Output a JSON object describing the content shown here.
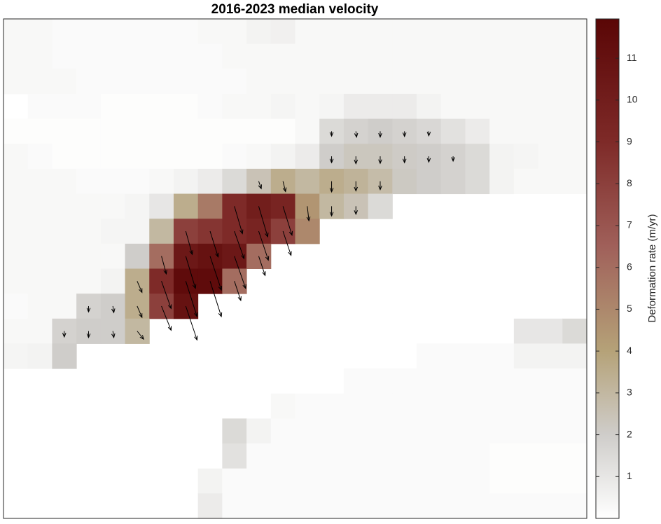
{
  "chart_data": {
    "type": "heatmap",
    "title": "2016-2023 median velocity",
    "colorbar_label": "Deformation rate (m/yr)",
    "clim": [
      0,
      11.94
    ],
    "colorbar_ticks": [
      1,
      2,
      3,
      4,
      5,
      6,
      7,
      8,
      9,
      10,
      11
    ],
    "colormap": [
      [
        0,
        "#ffffff"
      ],
      [
        2,
        "#cfcdca"
      ],
      [
        4,
        "#b5a278"
      ],
      [
        6.5,
        "#a0605a"
      ],
      [
        9,
        "#7e2a28"
      ],
      [
        11.94,
        "#5a0606"
      ]
    ],
    "z": [
      [
        0.3,
        0.3,
        0.2,
        0.2,
        0.2,
        0.2,
        0.2,
        0.2,
        0.3,
        0.3,
        0.5,
        0.6,
        0.3,
        0.3,
        0.3,
        0.3,
        0.3,
        0.3,
        0.3,
        0.3,
        0.3,
        0.3,
        0.3,
        0.3
      ],
      [
        0.3,
        0.3,
        0.2,
        0.2,
        0.2,
        0.2,
        0.2,
        0.2,
        0.2,
        0.3,
        0.3,
        0.3,
        0.3,
        0.3,
        0.3,
        0.3,
        0.3,
        0.3,
        0.3,
        0.3,
        0.3,
        0.3,
        0.3,
        0.3
      ],
      [
        0.3,
        0.3,
        0.3,
        0.2,
        0.2,
        0.2,
        0.2,
        0.2,
        0.2,
        0.2,
        0.3,
        0.3,
        0.3,
        0.3,
        0.3,
        0.3,
        0.3,
        0.3,
        0.3,
        0.3,
        0.3,
        0.3,
        0.3,
        0.3
      ],
      [
        null,
        0.2,
        0.2,
        0.2,
        0.1,
        0.1,
        0.1,
        0.1,
        0.2,
        0.3,
        0.3,
        0.4,
        0.3,
        0.4,
        0.8,
        0.8,
        0.8,
        0.5,
        0.3,
        0.3,
        0.3,
        0.3,
        0.3,
        0.3
      ],
      [
        0.1,
        0.1,
        0.1,
        0.1,
        0.1,
        0.1,
        0.1,
        0.1,
        0.1,
        0.1,
        0.1,
        0.1,
        0.3,
        1.5,
        1.8,
        2,
        1.8,
        1.6,
        1.2,
        0.8,
        0.3,
        0.3,
        0.3,
        0.3
      ],
      [
        0.3,
        0.2,
        0.1,
        0.1,
        0.1,
        0.1,
        0.1,
        0.1,
        0.1,
        0.2,
        0.3,
        0.5,
        0.8,
        2,
        2.3,
        2.3,
        2.1,
        2,
        1.8,
        1.5,
        0.5,
        0.4,
        0.3,
        0.3
      ],
      [
        0.3,
        0.3,
        0.3,
        0.2,
        0.2,
        0.2,
        0.3,
        0.5,
        0.8,
        1.5,
        2.5,
        3.5,
        3,
        3.5,
        3.2,
        2.8,
        2.2,
        2,
        1.8,
        1.5,
        0.5,
        0.3,
        0.3,
        0.3
      ],
      [
        0.3,
        0.3,
        0.3,
        0.3,
        0.3,
        0.4,
        1,
        3.5,
        5.5,
        9,
        10,
        9.5,
        4.5,
        3,
        2.5,
        1.5,
        null,
        null,
        null,
        null,
        null,
        null,
        null,
        null
      ],
      [
        0.3,
        0.3,
        0.3,
        0.3,
        0.4,
        0.4,
        3,
        8,
        8.5,
        9,
        9.5,
        8,
        5,
        null,
        null,
        null,
        null,
        null,
        null,
        null,
        null,
        null,
        null,
        null
      ],
      [
        0.3,
        0.3,
        0.3,
        0.3,
        0.3,
        2,
        6,
        10.5,
        11,
        10.5,
        6,
        null,
        null,
        null,
        null,
        null,
        null,
        null,
        null,
        null,
        null,
        null,
        null,
        null
      ],
      [
        0.3,
        0.3,
        0.3,
        0.3,
        0.5,
        3.5,
        9,
        11.5,
        11.5,
        6,
        null,
        null,
        null,
        null,
        null,
        null,
        null,
        null,
        null,
        null,
        null,
        null,
        null,
        null
      ],
      [
        0.2,
        0.3,
        0.3,
        1.8,
        2,
        3.5,
        8,
        11,
        null,
        null,
        null,
        null,
        null,
        null,
        null,
        null,
        null,
        null,
        null,
        null,
        null,
        null,
        null,
        null
      ],
      [
        0.3,
        0.3,
        1.8,
        2,
        2,
        3,
        null,
        null,
        null,
        null,
        null,
        null,
        null,
        null,
        null,
        null,
        null,
        null,
        null,
        null,
        null,
        1,
        1,
        1.5
      ],
      [
        0.4,
        0.5,
        2,
        null,
        null,
        null,
        null,
        null,
        null,
        null,
        null,
        null,
        null,
        null,
        null,
        null,
        null,
        0.2,
        0.2,
        0.2,
        0.2,
        0.5,
        0.5,
        0.5
      ],
      [
        null,
        null,
        null,
        null,
        null,
        null,
        null,
        null,
        null,
        null,
        null,
        null,
        null,
        null,
        0.2,
        0.2,
        0.2,
        0.2,
        0.2,
        0.2,
        0.2,
        0.2,
        0.2,
        0.2
      ],
      [
        null,
        null,
        null,
        null,
        null,
        null,
        null,
        null,
        null,
        null,
        null,
        0.3,
        0.2,
        0.2,
        0.2,
        0.2,
        0.2,
        0.2,
        0.2,
        0.2,
        0.2,
        0.2,
        0.2,
        0.2
      ],
      [
        null,
        null,
        null,
        null,
        null,
        null,
        null,
        null,
        null,
        1.5,
        0.5,
        0.2,
        0.2,
        0.2,
        0.2,
        0.2,
        0.2,
        0.2,
        0.2,
        0.2,
        0.2,
        0.2,
        0.2,
        0.2
      ],
      [
        null,
        null,
        null,
        null,
        null,
        null,
        null,
        null,
        null,
        1.2,
        0.2,
        0.2,
        0.2,
        0.2,
        0.2,
        0.2,
        0.2,
        0.2,
        0.2,
        0.2,
        0.1,
        0.1,
        0.1,
        0.1
      ],
      [
        null,
        null,
        null,
        null,
        null,
        null,
        null,
        null,
        0.5,
        0.2,
        0.2,
        0.2,
        0.2,
        0.2,
        0.2,
        0.2,
        0.2,
        0.2,
        0.2,
        0.2,
        0.1,
        0.1,
        0.1,
        0.1
      ],
      [
        null,
        null,
        null,
        null,
        null,
        null,
        null,
        null,
        0.8,
        0.2,
        0.2,
        0.2,
        0.2,
        0.2,
        0.2,
        0.2,
        0.2,
        0.2,
        0.2,
        0.2,
        0.2,
        0.2,
        0.2,
        0.2
      ]
    ],
    "quiver": {
      "col": [
        13,
        14,
        15,
        16,
        17,
        13,
        14,
        15,
        16,
        17,
        18,
        13,
        14,
        15,
        11,
        10,
        9,
        10,
        11,
        12,
        13,
        14,
        7,
        8,
        9,
        10,
        11,
        6,
        7,
        8,
        9,
        10,
        5,
        6,
        7,
        8,
        9,
        3,
        4,
        5,
        6,
        7,
        2,
        3,
        4,
        5
      ],
      "row": [
        4,
        4,
        4,
        4,
        4,
        5,
        5,
        5,
        5,
        5,
        5,
        6,
        6,
        6,
        6,
        6,
        7,
        7,
        7,
        7,
        7,
        7,
        8,
        8,
        8,
        8,
        8,
        9,
        9,
        9,
        9,
        9,
        10,
        10,
        10,
        10,
        10,
        11,
        11,
        11,
        11,
        11,
        12,
        12,
        12,
        12
      ],
      "u": [
        0,
        0.2,
        0,
        0,
        0,
        0,
        0,
        0,
        0,
        0,
        0,
        0,
        0,
        0,
        0.8,
        0.8,
        2.5,
        2.8,
        2.8,
        0.5,
        0,
        0,
        2,
        2.5,
        3,
        3,
        2.5,
        1.5,
        3,
        3.5,
        3.5,
        2,
        1.5,
        3,
        3.5,
        3.5,
        2,
        0,
        0.3,
        1.5,
        3,
        3.5,
        0,
        0,
        0.3,
        2
      ],
      "v": [
        -1.5,
        -1.8,
        -1.8,
        -1.6,
        -1.4,
        -2,
        -2.3,
        -2.2,
        -2,
        -1.8,
        -1.5,
        -3.3,
        -3,
        -2.6,
        -3.2,
        -2.3,
        -8.5,
        -9.5,
        -9,
        -4.5,
        -3,
        -2.5,
        -7.2,
        -8,
        -8.5,
        -9,
        -7.5,
        -5.5,
        -10,
        -10.5,
        -10,
        -6,
        -3.5,
        -8.5,
        -11,
        -11,
        -6,
        -1.8,
        -2,
        -3.5,
        -7.5,
        -10.5,
        -1.8,
        -2,
        -2,
        -2.5
      ]
    }
  }
}
